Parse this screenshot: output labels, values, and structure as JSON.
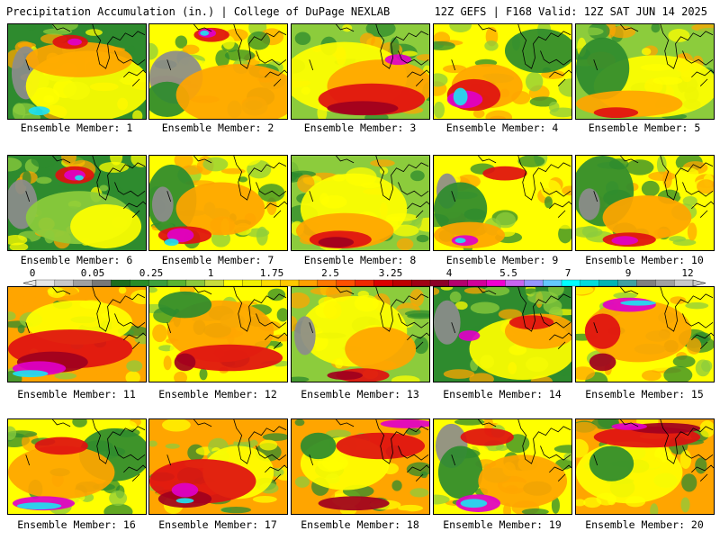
{
  "header": {
    "title_left": "Precipitation Accumulation (in.) | College of DuPage NEXLAB",
    "title_right": "12Z GEFS | F168 Valid: 12Z SAT JUN 14 2025"
  },
  "panels": [
    {
      "label": "Ensemble Member: 1"
    },
    {
      "label": "Ensemble Member: 2"
    },
    {
      "label": "Ensemble Member: 3"
    },
    {
      "label": "Ensemble Member: 4"
    },
    {
      "label": "Ensemble Member: 5"
    },
    {
      "label": "Ensemble Member: 6"
    },
    {
      "label": "Ensemble Member: 7"
    },
    {
      "label": "Ensemble Member: 8"
    },
    {
      "label": "Ensemble Member: 9"
    },
    {
      "label": "Ensemble Member: 10"
    },
    {
      "label": "Ensemble Member: 11"
    },
    {
      "label": "Ensemble Member: 12"
    },
    {
      "label": "Ensemble Member: 13"
    },
    {
      "label": "Ensemble Member: 14"
    },
    {
      "label": "Ensemble Member: 15"
    },
    {
      "label": "Ensemble Member: 16"
    },
    {
      "label": "Ensemble Member: 17"
    },
    {
      "label": "Ensemble Member: 18"
    },
    {
      "label": "Ensemble Member: 19"
    },
    {
      "label": "Ensemble Member: 20"
    }
  ],
  "colorbar": {
    "labels": [
      "0",
      "0.05",
      "0.25",
      "1",
      "1.75",
      "2.5",
      "3.25",
      "4",
      "5.5",
      "7",
      "9",
      "12"
    ],
    "colors": [
      "#e6e6e6",
      "#c8c8c8",
      "#a0a0a0",
      "#787878",
      "#1e6e1e",
      "#288c28",
      "#3ca03c",
      "#5ab432",
      "#8cc83c",
      "#c8dc3c",
      "#ffff00",
      "#f0f000",
      "#ffdc00",
      "#ffc800",
      "#ffa000",
      "#ff7800",
      "#ff5000",
      "#f02800",
      "#dc0000",
      "#be0000",
      "#a00014",
      "#8c0028",
      "#b4006e",
      "#d2009a",
      "#f000d2",
      "#c864f0",
      "#9696ff",
      "#64c8ff",
      "#00ffff",
      "#00dcdc",
      "#00b4b4",
      "#40a0a0",
      "#808080",
      "#a0a0a0",
      "#c8c8c8"
    ]
  },
  "map_legend_colors": {
    "gray": "#8c8c8c",
    "green": "#2e8b2e",
    "light_green": "#8ccc3c",
    "yellow": "#ffff00",
    "orange": "#ffa500",
    "red": "#e01010",
    "dark_red": "#a0001e",
    "magenta": "#e000c8",
    "cyan": "#20e0f0"
  }
}
